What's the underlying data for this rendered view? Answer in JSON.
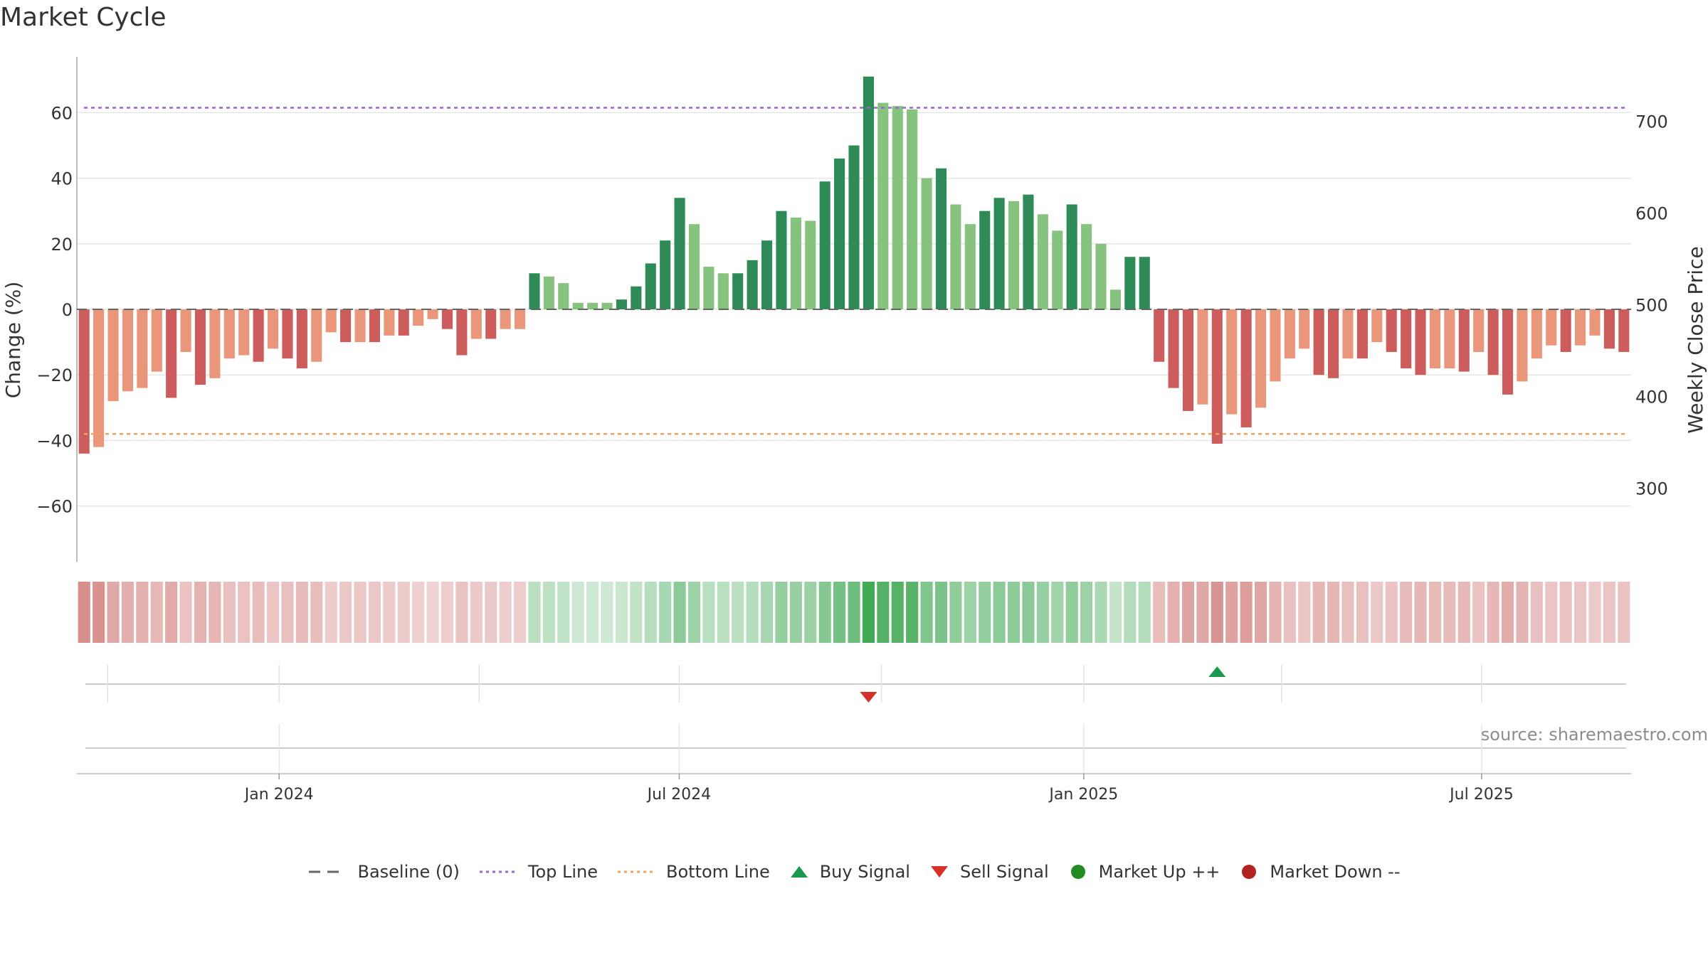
{
  "page": {
    "title": "Market Cycle",
    "source": "source: sharemaestro.com"
  },
  "colors": {
    "up_dark": "#2e8b57",
    "up_light": "#86c37e",
    "down_dark": "#cd5c5c",
    "down_light": "#e9967a",
    "top_line": "#9966cc",
    "bottom_line": "#f0a060",
    "baseline": "#666666",
    "buy": "#1a9850",
    "sell": "#d73027",
    "market_up": "#228b22",
    "market_down": "#b22222"
  },
  "legend": [
    {
      "label": "Baseline (0)",
      "icon": "dash-line-icon"
    },
    {
      "label": "Top Line",
      "icon": "dotted-line-icon"
    },
    {
      "label": "Bottom Line",
      "icon": "dotted-line-icon"
    },
    {
      "label": "Buy Signal",
      "icon": "triangle-up-icon"
    },
    {
      "label": "Sell Signal",
      "icon": "triangle-down-icon"
    },
    {
      "label": "Market Up ++",
      "icon": "circle-icon"
    },
    {
      "label": "Market Down --",
      "icon": "circle-icon"
    }
  ],
  "chart_data": {
    "type": "bar",
    "title": "Market Cycle",
    "ylabel": "Change (%)",
    "y2label": "Weekly Close Price",
    "ylim": [
      -77,
      77
    ],
    "y2lim": [
      220,
      770
    ],
    "yticks": [
      60,
      40,
      20,
      0,
      -20,
      -40,
      -60
    ],
    "ytick_labels": [
      "60",
      "40",
      "20",
      "0",
      "−20",
      "−40",
      "−60"
    ],
    "y2ticks": [
      700,
      600,
      500,
      400,
      300
    ],
    "y2tick_labels": [
      "700",
      "600",
      "500",
      "400",
      "300"
    ],
    "x_start": "2023-10-01",
    "x_end": "2025-09-07",
    "xticks": [
      "2024-01-01",
      "2024-07-01",
      "2025-01-01",
      "2025-07-01"
    ],
    "xtick_labels": [
      "Jan 2024",
      "Jul 2024",
      "Jan 2025",
      "Jul 2025"
    ],
    "top_line": 61.5,
    "bottom_line": -38,
    "grid": true,
    "legend_position": "bottom",
    "values": [
      -44,
      -42,
      -28,
      -25,
      -24,
      -19,
      -27,
      -13,
      -23,
      -21,
      -15,
      -14,
      -16,
      -12,
      -15,
      -18,
      -16,
      -7,
      -10,
      -10,
      -10,
      -8,
      -8,
      -5,
      -3,
      -6,
      -14,
      -9,
      -9,
      -6,
      -6,
      11,
      10,
      8,
      2,
      2,
      2,
      3,
      7,
      14,
      21,
      34,
      26,
      13,
      11,
      11,
      15,
      21,
      30,
      28,
      27,
      39,
      46,
      50,
      71,
      63,
      62,
      61,
      40,
      43,
      32,
      26,
      30,
      34,
      33,
      35,
      29,
      24,
      32,
      26,
      20,
      6,
      16,
      16,
      -16,
      -24,
      -31,
      -29,
      -41,
      -32,
      -36,
      -30,
      -22,
      -15,
      -12,
      -20,
      -21,
      -15,
      -15,
      -10,
      -13,
      -18,
      -20,
      -18,
      -18,
      -19,
      -13,
      -20,
      -26,
      -22,
      -15,
      -11,
      -13,
      -11,
      -8,
      -12,
      -13
    ],
    "strength": [
      "dark",
      "light",
      "light",
      "light",
      "light",
      "light",
      "dark",
      "light",
      "dark",
      "light",
      "light",
      "light",
      "dark",
      "light",
      "dark",
      "dark",
      "light",
      "light",
      "dark",
      "light",
      "dark",
      "light",
      "dark",
      "light",
      "light",
      "dark",
      "dark",
      "light",
      "dark",
      "light",
      "light",
      "dark",
      "light",
      "light",
      "light",
      "light",
      "light",
      "dark",
      "dark",
      "dark",
      "dark",
      "dark",
      "light",
      "light",
      "light",
      "dark",
      "dark",
      "dark",
      "dark",
      "light",
      "light",
      "dark",
      "dark",
      "dark",
      "dark",
      "light",
      "light",
      "light",
      "light",
      "dark",
      "light",
      "light",
      "dark",
      "dark",
      "light",
      "dark",
      "light",
      "light",
      "dark",
      "light",
      "light",
      "light",
      "dark",
      "dark",
      "dark",
      "dark",
      "dark",
      "light",
      "dark",
      "light",
      "dark",
      "light",
      "light",
      "light",
      "light",
      "dark",
      "dark",
      "light",
      "dark",
      "light",
      "dark",
      "dark",
      "dark",
      "light",
      "light",
      "dark",
      "light",
      "dark",
      "dark",
      "light",
      "light",
      "light",
      "dark",
      "light",
      "light",
      "dark",
      "dark"
    ],
    "buy_signals": [
      {
        "index": 78
      }
    ],
    "sell_signals": [
      {
        "index": 54
      }
    ]
  }
}
